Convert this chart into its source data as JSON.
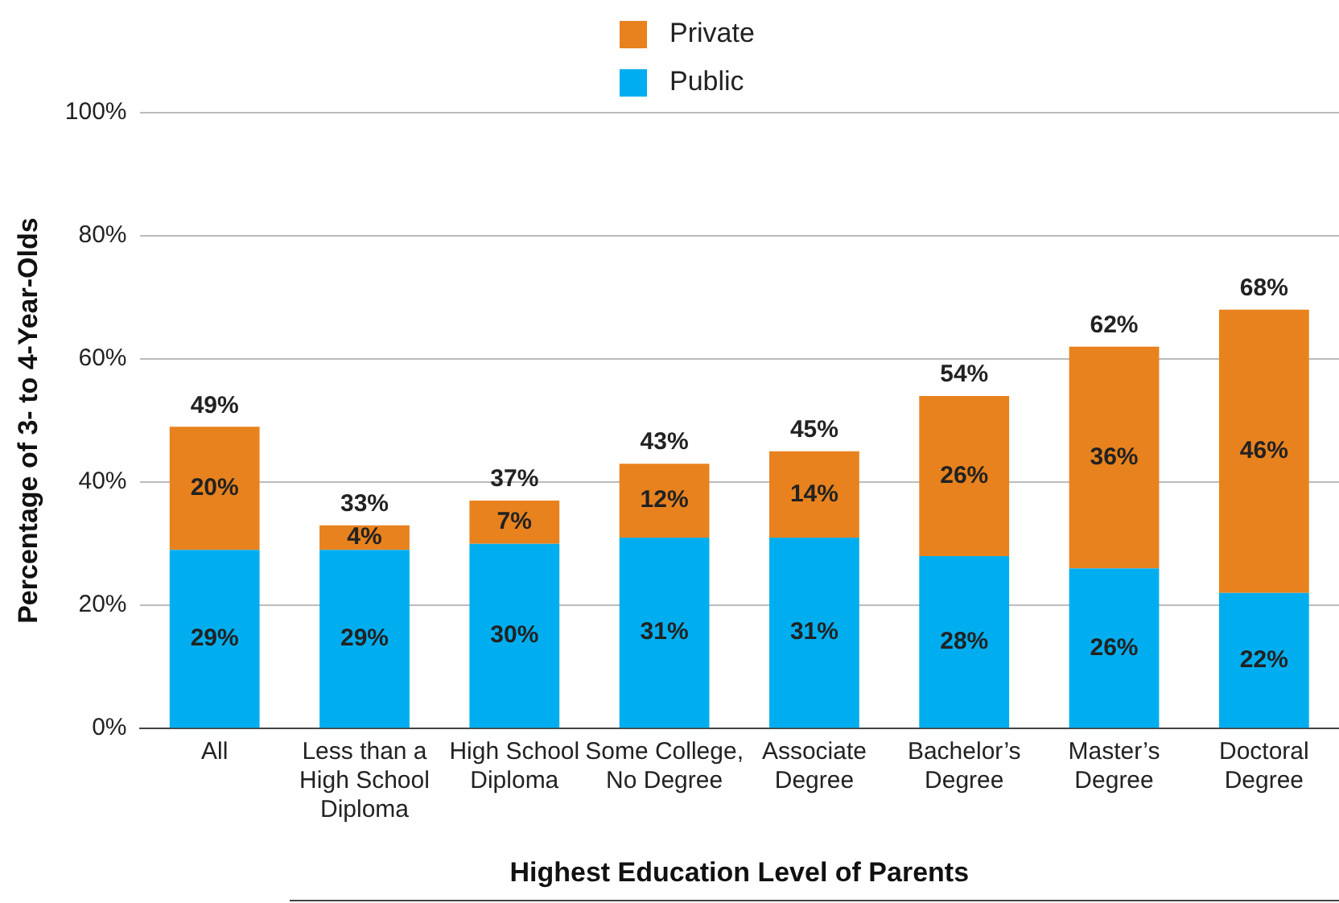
{
  "chart_data": {
    "type": "bar",
    "stacked": true,
    "xlabel": "Highest Education Level of Parents",
    "ylabel": "Percentage of 3- to 4-Year-Olds",
    "categories": [
      "All",
      "Less than a High School Diploma",
      "High School Diploma",
      "Some College, No Degree",
      "Associate Degree",
      "Bachelor’s Degree",
      "Master’s Degree",
      "Doctoral Degree"
    ],
    "series": [
      {
        "name": "Public",
        "color": "#00aeef",
        "values": [
          29,
          29,
          30,
          31,
          31,
          28,
          26,
          22
        ],
        "value_labels": [
          "29%",
          "29%",
          "30%",
          "31%",
          "31%",
          "28%",
          "26%",
          "22%"
        ]
      },
      {
        "name": "Private",
        "color": "#e8821e",
        "values": [
          20,
          4,
          7,
          12,
          14,
          26,
          36,
          46
        ],
        "value_labels": [
          "20%",
          "4%",
          "7%",
          "12%",
          "14%",
          "26%",
          "36%",
          "46%"
        ]
      }
    ],
    "totals": [
      "49%",
      "33%",
      "37%",
      "43%",
      "45%",
      "54%",
      "62%",
      "68%"
    ],
    "ylim": [
      0,
      100
    ],
    "yticks": [
      {
        "value": 0,
        "label": "0%"
      },
      {
        "value": 20,
        "label": "20%"
      },
      {
        "value": 40,
        "label": "40%"
      },
      {
        "value": 60,
        "label": "60%"
      },
      {
        "value": 80,
        "label": "80%"
      },
      {
        "value": 100,
        "label": "100%"
      }
    ],
    "grid": "y",
    "legend": "top"
  }
}
